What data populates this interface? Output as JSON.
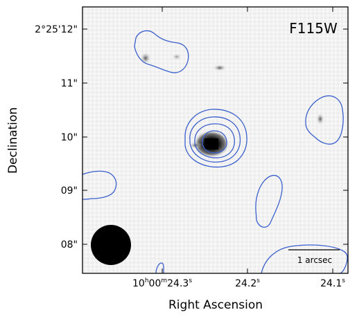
{
  "figure": {
    "filter_label": "F115W",
    "scale_bar_label": "1 arcsec",
    "x_axis_label": "Right Ascension",
    "y_axis_label": "Declination",
    "y_ticks": [
      "2°25'12\"",
      "11\"",
      "10\"",
      "09\"",
      "08\""
    ],
    "x_ticks": [
      {
        "h": "10",
        "m": "00",
        "s": "24.3"
      },
      {
        "s": "24.2"
      },
      {
        "s": "24.1"
      }
    ],
    "contour_color": "#3a5fcd",
    "beam_color": "#000000",
    "image_background": "#f2f2f2"
  }
}
